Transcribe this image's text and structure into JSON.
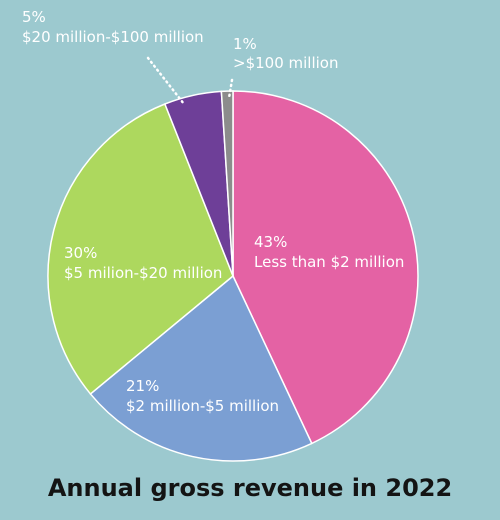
{
  "chart_data": {
    "type": "pie",
    "title": "Annual gross revenue in 2022",
    "slices": [
      {
        "percent_label": "43%",
        "label": "Less than $2 million",
        "value": 43,
        "color": "#e462a4"
      },
      {
        "percent_label": "21%",
        "label": "$2 million-$5 million",
        "value": 21,
        "color": "#7b9fd3"
      },
      {
        "percent_label": "30%",
        "label": "$5 milion-$20 million",
        "value": 30,
        "color": "#add85e"
      },
      {
        "percent_label": "5%",
        "label": "$20 million-$100 million",
        "value": 5,
        "color": "#6e3f98"
      },
      {
        "percent_label": "1%",
        "label": ">$100 million",
        "value": 1,
        "color": "#8c8c8c"
      }
    ]
  }
}
